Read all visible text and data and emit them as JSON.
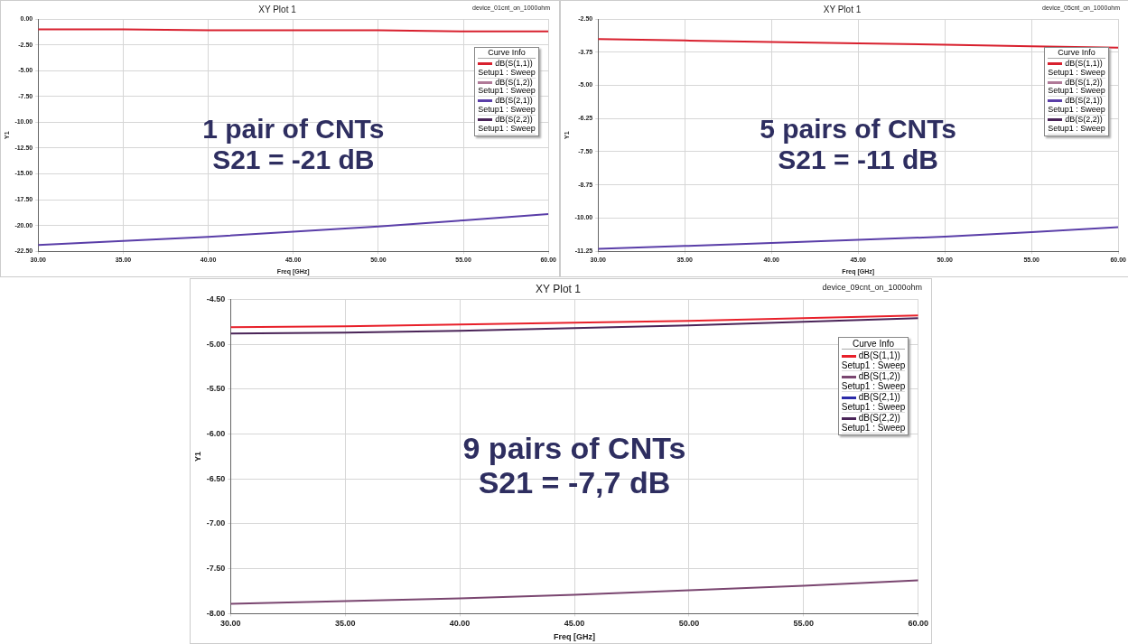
{
  "chart_data": [
    {
      "type": "line",
      "title": "XY Plot 1",
      "xlabel": "Freq [GHz]",
      "ylabel": "Y1",
      "legend_title": "Curve Info",
      "legend": "top right",
      "grid": true,
      "marker": "none",
      "line_style": "solid",
      "annotations": [
        "device_01cnt_on_1000ohm",
        "1 pair of CNTs",
        "S21 = -21 dB"
      ],
      "x": [
        30,
        35,
        40,
        45,
        50,
        55,
        60
      ],
      "xlim": [
        30,
        60
      ],
      "xticks": [
        {
          "value": 30,
          "label": "30.00"
        },
        {
          "value": 35,
          "label": "35.00"
        },
        {
          "value": 40,
          "label": "40.00"
        },
        {
          "value": 45,
          "label": "45.00"
        },
        {
          "value": 50,
          "label": "50.00"
        },
        {
          "value": 55,
          "label": "55.00"
        },
        {
          "value": 60,
          "label": "60.00"
        }
      ],
      "ylim": [
        -22.5,
        0
      ],
      "yticks": [
        {
          "value": -22.5,
          "label": "-22.50"
        },
        {
          "value": -20,
          "label": "-20.00"
        },
        {
          "value": -17.5,
          "label": "-17.50"
        },
        {
          "value": -15,
          "label": "-15.00"
        },
        {
          "value": -12.5,
          "label": "-12.50"
        },
        {
          "value": -10,
          "label": "-10.00"
        },
        {
          "value": -7.5,
          "label": "-7.50"
        },
        {
          "value": -5,
          "label": "-5.00"
        },
        {
          "value": -2.5,
          "label": "-2.50"
        },
        {
          "value": 0,
          "label": "0.00"
        }
      ],
      "series": [
        {
          "name": "dB(S(1,1))\nSetup1 : Sweep",
          "color": "#d8202e",
          "values": [
            -1.0,
            -1.0,
            -1.1,
            -1.1,
            -1.1,
            -1.2,
            -1.2
          ]
        },
        {
          "name": "dB(S(1,2))\nSetup1 : Sweep",
          "color": "#b07a98",
          "values": [
            null,
            null,
            null,
            null,
            null,
            null,
            null
          ]
        },
        {
          "name": "dB(S(2,1))\nSetup1 : Sweep",
          "color": "#5a3ea8",
          "values": [
            -21.9,
            -21.5,
            -21.1,
            -20.6,
            -20.1,
            -19.5,
            -18.9
          ]
        },
        {
          "name": "dB(S(2,2))\nSetup1 : Sweep",
          "color": "#4a2458",
          "values": [
            null,
            null,
            null,
            null,
            null,
            null,
            null
          ]
        }
      ]
    },
    {
      "type": "line",
      "title": "XY Plot 1",
      "xlabel": "Freq [GHz]",
      "ylabel": "Y1",
      "legend_title": "Curve Info",
      "legend": "top right",
      "grid": true,
      "marker": "none",
      "line_style": "solid",
      "annotations": [
        "device_05cnt_on_1000ohm",
        "5 pairs of CNTs",
        "S21 = -11 dB"
      ],
      "x": [
        30,
        35,
        40,
        45,
        50,
        55,
        60
      ],
      "xlim": [
        30,
        60
      ],
      "xticks": [
        {
          "value": 30,
          "label": "30.00"
        },
        {
          "value": 35,
          "label": "35.00"
        },
        {
          "value": 40,
          "label": "40.00"
        },
        {
          "value": 45,
          "label": "45.00"
        },
        {
          "value": 50,
          "label": "50.00"
        },
        {
          "value": 55,
          "label": "55.00"
        },
        {
          "value": 60,
          "label": "60.00"
        }
      ],
      "ylim": [
        -11.25,
        -2.5
      ],
      "yticks": [
        {
          "value": -11.25,
          "label": "-11.25"
        },
        {
          "value": -10,
          "label": "-10.00"
        },
        {
          "value": -8.75,
          "label": "-8.75"
        },
        {
          "value": -7.5,
          "label": "-7.50"
        },
        {
          "value": -6.25,
          "label": "-6.25"
        },
        {
          "value": -5,
          "label": "-5.00"
        },
        {
          "value": -3.75,
          "label": "-3.75"
        },
        {
          "value": -2.5,
          "label": "-2.50"
        }
      ],
      "series": [
        {
          "name": "dB(S(1,1))\nSetup1 : Sweep",
          "color": "#d8202e",
          "values": [
            -3.26,
            -3.31,
            -3.37,
            -3.42,
            -3.47,
            -3.53,
            -3.58
          ]
        },
        {
          "name": "dB(S(1,2))\nSetup1 : Sweep",
          "color": "#b07a98",
          "values": [
            null,
            null,
            null,
            null,
            null,
            null,
            null
          ]
        },
        {
          "name": "dB(S(2,1))\nSetup1 : Sweep",
          "color": "#5a3ea8",
          "values": [
            -11.16,
            -11.05,
            -10.94,
            -10.82,
            -10.7,
            -10.53,
            -10.34
          ]
        },
        {
          "name": "dB(S(2,2))\nSetup1 : Sweep",
          "color": "#4a2458",
          "values": [
            null,
            null,
            null,
            null,
            null,
            null,
            null
          ]
        }
      ]
    },
    {
      "type": "line",
      "title": "XY Plot 1",
      "xlabel": "Freq [GHz]",
      "ylabel": "Y1",
      "legend_title": "Curve Info",
      "legend": "top right",
      "grid": true,
      "marker": "none",
      "line_style": "solid",
      "annotations": [
        "device_09cnt_on_1000ohm",
        "9 pairs of CNTs",
        "S21 = -7,7 dB"
      ],
      "x": [
        30,
        35,
        40,
        45,
        50,
        55,
        60
      ],
      "xlim": [
        30,
        60
      ],
      "xticks": [
        {
          "value": 30,
          "label": "30.00"
        },
        {
          "value": 35,
          "label": "35.00"
        },
        {
          "value": 40,
          "label": "40.00"
        },
        {
          "value": 45,
          "label": "45.00"
        },
        {
          "value": 50,
          "label": "50.00"
        },
        {
          "value": 55,
          "label": "55.00"
        },
        {
          "value": 60,
          "label": "60.00"
        }
      ],
      "ylim": [
        -8,
        -4.5
      ],
      "yticks": [
        {
          "value": -8,
          "label": "-8.00"
        },
        {
          "value": -7.5,
          "label": "-7.50"
        },
        {
          "value": -7,
          "label": "-7.00"
        },
        {
          "value": -6.5,
          "label": "-6.50"
        },
        {
          "value": -6,
          "label": "-6.00"
        },
        {
          "value": -5.5,
          "label": "-5.50"
        },
        {
          "value": -5,
          "label": "-5.00"
        },
        {
          "value": -4.5,
          "label": "-4.50"
        }
      ],
      "series": [
        {
          "name": "dB(S(1,1))\nSetup1 : Sweep",
          "color": "#e8202a",
          "values": [
            -4.81,
            -4.8,
            -4.78,
            -4.76,
            -4.74,
            -4.71,
            -4.68
          ]
        },
        {
          "name": "dB(S(1,2))\nSetup1 : Sweep",
          "color": "#7a4670",
          "values": [
            -7.89,
            -7.86,
            -7.83,
            -7.79,
            -7.74,
            -7.69,
            -7.63
          ]
        },
        {
          "name": "dB(S(2,1))\nSetup1 : Sweep",
          "color": "#2a2aa8",
          "values": [
            null,
            null,
            null,
            null,
            null,
            null,
            null
          ]
        },
        {
          "name": "dB(S(2,2))\nSetup1 : Sweep",
          "color": "#4a2458",
          "values": [
            -4.88,
            -4.87,
            -4.85,
            -4.82,
            -4.79,
            -4.75,
            -4.71
          ]
        }
      ]
    }
  ]
}
